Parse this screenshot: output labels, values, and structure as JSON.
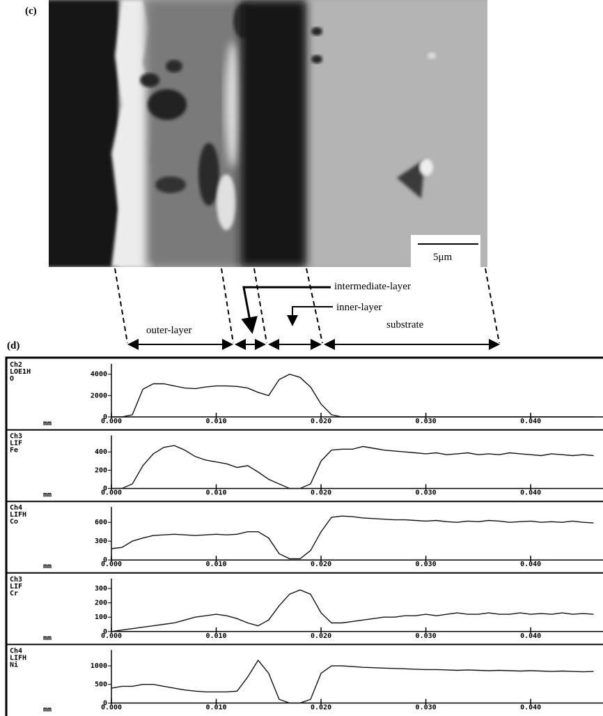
{
  "figure": {
    "panel_c": "(c)",
    "panel_d": "(d)",
    "scale_bar": "5μm",
    "outer": "outer-layer",
    "intermediate": "intermediate-layer",
    "inner": "inner-layer",
    "substrate": "substrate"
  },
  "chart_data": [
    {
      "type": "line",
      "channel": [
        "Ch2",
        "LOE1H",
        "O"
      ],
      "x_unit": "mm",
      "color": "#111111",
      "x": [
        0,
        0.001,
        0.002,
        0.003,
        0.004,
        0.005,
        0.006,
        0.007,
        0.008,
        0.009,
        0.01,
        0.011,
        0.012,
        0.013,
        0.014,
        0.015,
        0.016,
        0.017,
        0.018,
        0.019,
        0.02,
        0.021,
        0.022,
        0.023,
        0.024,
        0.025,
        0.026,
        0.027,
        0.028,
        0.029,
        0.03,
        0.031,
        0.032,
        0.033,
        0.034,
        0.035,
        0.036,
        0.037,
        0.038,
        0.039,
        0.04,
        0.041,
        0.042,
        0.043,
        0.044,
        0.045,
        0.046
      ],
      "values": [
        0,
        0,
        200,
        2600,
        3100,
        3100,
        2900,
        2700,
        2650,
        2800,
        2900,
        2900,
        2850,
        2700,
        2300,
        2000,
        3500,
        4000,
        3700,
        2800,
        1200,
        200,
        0,
        0,
        0,
        0,
        0,
        0,
        0,
        0,
        0,
        0,
        0,
        0,
        0,
        0,
        0,
        0,
        0,
        0,
        0,
        0,
        0,
        0,
        0,
        0,
        0
      ],
      "xlim": [
        0,
        0.0467
      ],
      "ylim": [
        0,
        4700
      ],
      "yticks": [
        0,
        2000,
        4000
      ],
      "xticks": [
        {
          "value": 0,
          "label": "0.000"
        },
        {
          "value": 0.01,
          "label": "0.010"
        },
        {
          "value": 0.02,
          "label": "0.020"
        },
        {
          "value": 0.03,
          "label": "0.030"
        },
        {
          "value": 0.04,
          "label": "0.040"
        }
      ]
    },
    {
      "type": "line",
      "channel": [
        "Ch3",
        "LIF",
        "Fe"
      ],
      "x_unit": "mm",
      "color": "#111111",
      "x": [
        0,
        0.001,
        0.002,
        0.003,
        0.004,
        0.005,
        0.006,
        0.007,
        0.008,
        0.009,
        0.01,
        0.011,
        0.012,
        0.013,
        0.014,
        0.015,
        0.016,
        0.017,
        0.018,
        0.019,
        0.02,
        0.021,
        0.022,
        0.023,
        0.024,
        0.025,
        0.026,
        0.027,
        0.028,
        0.029,
        0.03,
        0.031,
        0.032,
        0.033,
        0.034,
        0.035,
        0.036,
        0.037,
        0.038,
        0.039,
        0.04,
        0.041,
        0.042,
        0.043,
        0.044,
        0.045,
        0.046
      ],
      "values": [
        0,
        0,
        50,
        250,
        380,
        450,
        470,
        420,
        350,
        310,
        290,
        270,
        230,
        250,
        180,
        100,
        50,
        0,
        0,
        50,
        300,
        420,
        430,
        430,
        460,
        440,
        420,
        410,
        400,
        390,
        380,
        390,
        370,
        380,
        390,
        370,
        380,
        370,
        390,
        380,
        370,
        360,
        380,
        370,
        360,
        370,
        360
      ],
      "xlim": [
        0,
        0.0467
      ],
      "ylim": [
        0,
        550
      ],
      "yticks": [
        0,
        200,
        400
      ],
      "xticks": [
        {
          "value": 0,
          "label": "0.000"
        },
        {
          "value": 0.01,
          "label": "0.010"
        },
        {
          "value": 0.02,
          "label": "0.020"
        },
        {
          "value": 0.03,
          "label": "0.030"
        },
        {
          "value": 0.04,
          "label": "0.040"
        }
      ]
    },
    {
      "type": "line",
      "channel": [
        "Ch4",
        "LIFH",
        "Co"
      ],
      "x_unit": "mm",
      "color": "#111111",
      "x": [
        0,
        0.001,
        0.002,
        0.003,
        0.004,
        0.005,
        0.006,
        0.007,
        0.008,
        0.009,
        0.01,
        0.011,
        0.012,
        0.013,
        0.014,
        0.015,
        0.016,
        0.017,
        0.018,
        0.019,
        0.02,
        0.021,
        0.022,
        0.023,
        0.024,
        0.025,
        0.026,
        0.027,
        0.028,
        0.029,
        0.03,
        0.031,
        0.032,
        0.033,
        0.034,
        0.035,
        0.036,
        0.037,
        0.038,
        0.039,
        0.04,
        0.041,
        0.042,
        0.043,
        0.044,
        0.045,
        0.046
      ],
      "values": [
        180,
        200,
        300,
        350,
        390,
        400,
        410,
        400,
        390,
        400,
        410,
        400,
        410,
        450,
        450,
        350,
        100,
        20,
        20,
        150,
        450,
        680,
        700,
        690,
        670,
        660,
        650,
        640,
        640,
        630,
        620,
        630,
        610,
        600,
        620,
        610,
        630,
        620,
        600,
        610,
        620,
        600,
        610,
        600,
        620,
        600,
        590
      ],
      "xlim": [
        0,
        0.0467
      ],
      "ylim": [
        0,
        800
      ],
      "yticks": [
        0,
        300,
        600
      ],
      "xticks": [
        {
          "value": 0,
          "label": "0.000"
        },
        {
          "value": 0.01,
          "label": "0.010"
        },
        {
          "value": 0.02,
          "label": "0.020"
        },
        {
          "value": 0.03,
          "label": "0.030"
        },
        {
          "value": 0.04,
          "label": "0.040"
        }
      ]
    },
    {
      "type": "line",
      "channel": [
        "Ch3",
        "LIF",
        "Cr"
      ],
      "x_unit": "mm",
      "color": "#111111",
      "x": [
        0,
        0.001,
        0.002,
        0.003,
        0.004,
        0.005,
        0.006,
        0.007,
        0.008,
        0.009,
        0.01,
        0.011,
        0.012,
        0.013,
        0.014,
        0.015,
        0.016,
        0.017,
        0.018,
        0.019,
        0.02,
        0.021,
        0.022,
        0.023,
        0.024,
        0.025,
        0.026,
        0.027,
        0.028,
        0.029,
        0.03,
        0.031,
        0.032,
        0.033,
        0.034,
        0.035,
        0.036,
        0.037,
        0.038,
        0.039,
        0.04,
        0.041,
        0.042,
        0.043,
        0.044,
        0.045,
        0.046
      ],
      "values": [
        0,
        10,
        20,
        30,
        40,
        50,
        60,
        80,
        100,
        110,
        120,
        110,
        90,
        60,
        40,
        80,
        180,
        260,
        290,
        260,
        130,
        60,
        60,
        70,
        80,
        90,
        100,
        100,
        110,
        110,
        120,
        110,
        120,
        130,
        120,
        120,
        130,
        120,
        120,
        130,
        120,
        125,
        120,
        130,
        120,
        125,
        120
      ],
      "xlim": [
        0,
        0.0467
      ],
      "ylim": [
        0,
        350
      ],
      "yticks": [
        0,
        100,
        200,
        300
      ],
      "xticks": [
        {
          "value": 0,
          "label": "0.000"
        },
        {
          "value": 0.01,
          "label": "0.010"
        },
        {
          "value": 0.02,
          "label": "0.020"
        },
        {
          "value": 0.03,
          "label": "0.030"
        },
        {
          "value": 0.04,
          "label": "0.040"
        }
      ]
    },
    {
      "type": "line",
      "channel": [
        "Ch4",
        "LIFH",
        "Ni"
      ],
      "x_unit": "mm",
      "color": "#111111",
      "x": [
        0,
        0.001,
        0.002,
        0.003,
        0.004,
        0.005,
        0.006,
        0.007,
        0.008,
        0.009,
        0.01,
        0.011,
        0.012,
        0.013,
        0.014,
        0.015,
        0.016,
        0.017,
        0.018,
        0.019,
        0.02,
        0.021,
        0.022,
        0.023,
        0.024,
        0.025,
        0.026,
        0.027,
        0.028,
        0.029,
        0.03,
        0.031,
        0.032,
        0.033,
        0.034,
        0.035,
        0.036,
        0.037,
        0.038,
        0.039,
        0.04,
        0.041,
        0.042,
        0.043,
        0.044,
        0.045,
        0.046
      ],
      "values": [
        400,
        450,
        450,
        500,
        500,
        450,
        400,
        350,
        320,
        300,
        300,
        300,
        320,
        700,
        1150,
        800,
        100,
        0,
        0,
        100,
        800,
        1000,
        1000,
        980,
        960,
        950,
        940,
        930,
        920,
        910,
        900,
        900,
        890,
        880,
        890,
        880,
        870,
        880,
        870,
        860,
        870,
        860,
        850,
        860,
        850,
        840,
        850
      ],
      "xlim": [
        0,
        0.0467
      ],
      "ylim": [
        0,
        1350
      ],
      "yticks": [
        0,
        500,
        1000
      ],
      "xticks": [
        {
          "value": 0,
          "label": "0.000"
        },
        {
          "value": 0.01,
          "label": "0.010"
        },
        {
          "value": 0.02,
          "label": "0.020"
        },
        {
          "value": 0.03,
          "label": "0.030"
        },
        {
          "value": 0.04,
          "label": "0.040"
        }
      ]
    }
  ]
}
